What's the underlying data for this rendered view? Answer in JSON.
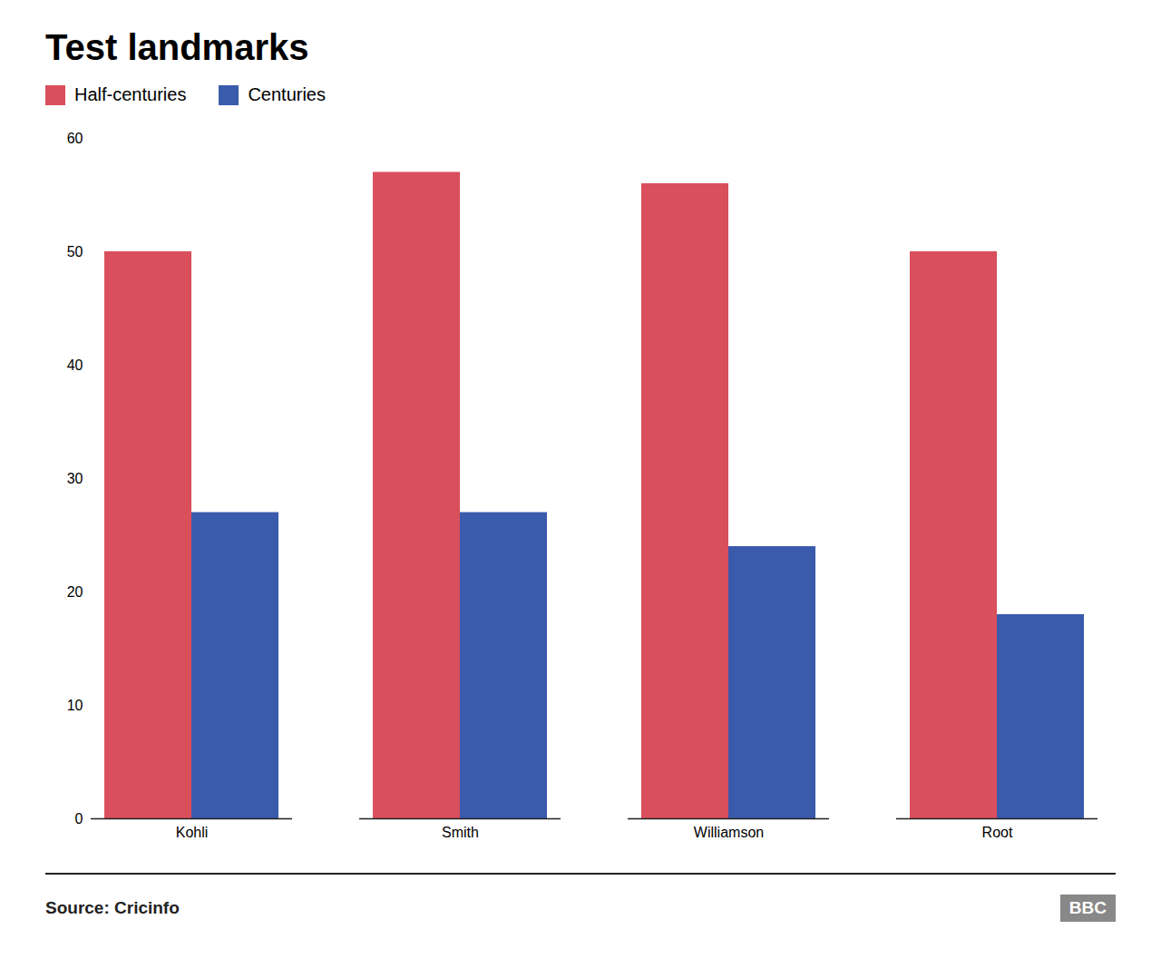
{
  "chart_data": {
    "type": "bar",
    "title": "Test landmarks",
    "categories": [
      "Kohli",
      "Smith",
      "Williamson",
      "Root"
    ],
    "series": [
      {
        "name": "Half-centuries",
        "color": "#d94f5c",
        "values": [
          50,
          57,
          56,
          50
        ]
      },
      {
        "name": "Centuries",
        "color": "#3a5aac",
        "values": [
          27,
          27,
          24,
          18
        ]
      }
    ],
    "ylim": [
      0,
      60
    ],
    "yticks": [
      0,
      10,
      20,
      30,
      40,
      50,
      60
    ],
    "grid": false,
    "legend": "top",
    "annotations": [
      "Source: Cricinfo",
      "BBC"
    ]
  }
}
